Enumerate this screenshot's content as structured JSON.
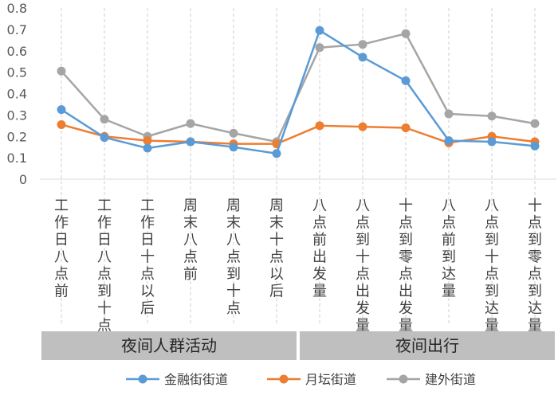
{
  "chart_data": {
    "type": "line",
    "title": "",
    "xlabel": "",
    "ylabel": "",
    "ylim": [
      0,
      0.8
    ],
    "yticks": [
      "0",
      "0.1",
      "0.2",
      "0.3",
      "0.4",
      "0.5",
      "0.6",
      "0.7",
      "0.8"
    ],
    "grid": "vertical dashed lines",
    "categories": [
      "工作日八点前",
      "工作日八点到十点",
      "工作日十点以后",
      "周末八点前",
      "周末八点到十点",
      "周末十点以后",
      "八点前出发量",
      "八点到十点出发量",
      "十点到零点出发量",
      "八点前到达量",
      "八点到十点到达量",
      "十点到零点到达量"
    ],
    "category_groups": [
      {
        "label": "夜间人群活动",
        "count": 6
      },
      {
        "label": "夜间出行",
        "count": 6
      }
    ],
    "series": [
      {
        "name": "金融街街道",
        "color": "#5B9BD5",
        "marker": "circle",
        "values": [
          0.325,
          0.195,
          0.145,
          0.175,
          0.15,
          0.12,
          0.695,
          0.57,
          0.46,
          0.18,
          0.175,
          0.155
        ]
      },
      {
        "name": "月坛街道",
        "color": "#ED7D31",
        "marker": "circle",
        "values": [
          0.255,
          0.2,
          0.18,
          0.175,
          0.165,
          0.165,
          0.25,
          0.245,
          0.24,
          0.17,
          0.2,
          0.175
        ]
      },
      {
        "name": "建外街道",
        "color": "#A5A5A5",
        "marker": "circle",
        "values": [
          0.505,
          0.28,
          0.2,
          0.26,
          0.215,
          0.175,
          0.615,
          0.63,
          0.68,
          0.305,
          0.295,
          0.26
        ]
      }
    ],
    "legend": "bottom"
  }
}
